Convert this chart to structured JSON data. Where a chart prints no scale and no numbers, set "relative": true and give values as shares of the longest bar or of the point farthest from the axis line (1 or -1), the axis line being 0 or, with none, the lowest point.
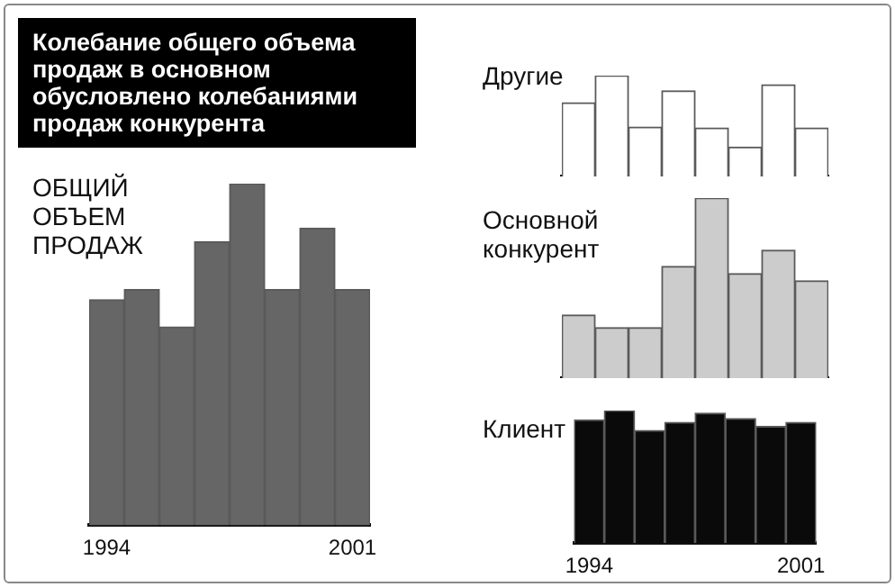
{
  "chart_data": [
    {
      "type": "bar",
      "title": "Колебание общего объема продаж в основном обусловлено колебаниями продаж конкурента",
      "subtitle": "ОБЩИЙ ОБЪЕМ ПРОДАЖ",
      "categories": [
        "1994",
        null,
        null,
        null,
        null,
        null,
        null,
        "2001"
      ],
      "values": [
        0.66,
        0.69,
        0.58,
        0.83,
        1,
        0.69,
        0.87,
        0.69
      ],
      "color": "#666666",
      "relative": true,
      "tick_labels": "x",
      "legend": false
    },
    {
      "type": "bar",
      "title": "Другие",
      "categories": [
        null,
        null,
        null,
        null,
        null,
        null,
        null,
        null
      ],
      "values": [
        0.73,
        1,
        0.49,
        0.85,
        0.48,
        0.29,
        0.91,
        0.48
      ],
      "color": "#ffffff",
      "relative": true,
      "tick_labels": false,
      "legend": false
    },
    {
      "type": "bar",
      "title": "Основной конкурент",
      "categories": [
        null,
        null,
        null,
        null,
        null,
        null,
        null,
        null
      ],
      "values": [
        0.35,
        0.28,
        0.28,
        0.62,
        1,
        0.58,
        0.71,
        0.54
      ],
      "color": "#cccccc",
      "relative": true,
      "tick_labels": false,
      "legend": false
    },
    {
      "type": "bar",
      "title": "Клиент",
      "categories": [
        "1994",
        null,
        null,
        null,
        null,
        null,
        null,
        "2001"
      ],
      "values": [
        0.93,
        1,
        0.85,
        0.91,
        0.98,
        0.94,
        0.88,
        0.91
      ],
      "color": "#0a0a0a",
      "relative": true,
      "tick_labels": "x",
      "legend": false
    }
  ]
}
